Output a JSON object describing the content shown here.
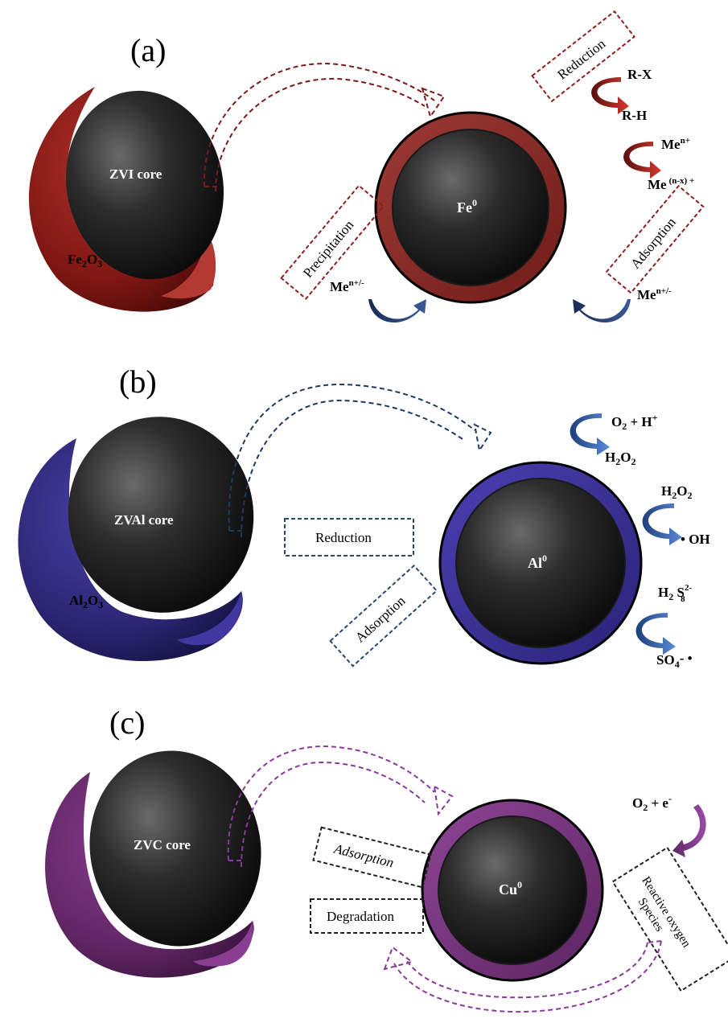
{
  "panels": {
    "a": {
      "label": "(a)",
      "core_label": "ZVI core",
      "shell_label_main": "Fe",
      "shell_label_sub1": "2",
      "shell_label_mid": "O",
      "shell_label_sub2": "3",
      "particle_label": "Fe",
      "particle_sup": "0",
      "box_reduction": "Reduction",
      "box_precipitation": "Precipitation",
      "box_adsorption": "Adsorption",
      "rx_in": "R-X",
      "rx_out": "R-H",
      "me_in": "Me",
      "me_in_sup": "n+",
      "me_out": "Me",
      "me_out_sup": "(n-x) +",
      "me_left": "Me",
      "me_left_sup": "n+/-",
      "me_right": "Me",
      "me_right_sup": "n+/-",
      "colors": {
        "shell": "#8c1a15",
        "arrow": "#7a1a1a",
        "box": "#8c2020"
      }
    },
    "b": {
      "label": "(b)",
      "core_label": "ZVAl core",
      "shell_label_main": "Al",
      "shell_label_sub1": "2",
      "shell_label_mid": "O",
      "shell_label_sub2": "3",
      "particle_label": "Al",
      "particle_sup": "0",
      "box_reduction": "Reduction",
      "box_adsorption": "Adsorption",
      "o2": "O",
      "o2_sub": "2",
      "o2_rest": " + H",
      "o2_sup": "+",
      "h2o2_a": "H",
      "h2o2_a_sub1": "2",
      "h2o2_a_mid": "O",
      "h2o2_a_sub2": "2",
      "h2o2_b": "H",
      "h2o2_b_sub1": "2",
      "h2o2_b_mid": "O",
      "h2o2_b_sub2": "2",
      "oh": "• OH",
      "h2s": "H",
      "h2s_sub": "2",
      "h2s_rest": " S",
      "h2s_sup": "2-",
      "h2s_sub2": "8",
      "so4": "SO",
      "so4_sub": "4",
      "so4_rest": "- •",
      "colors": {
        "shell": "#2f2a7a",
        "arrow": "#1f3a5f",
        "box": "#2b4a6b"
      }
    },
    "c": {
      "label": "(c)",
      "core_label": "ZVC core",
      "particle_label": "Cu",
      "particle_sup": "0",
      "box_adsorption": "Adsorption",
      "box_degradation": "Degradation",
      "box_ros_line1": "Reactive oxygen",
      "box_ros_line2": "Species",
      "o2": "O",
      "o2_sub": "2",
      "o2_rest": " + e",
      "o2_sup": "-",
      "colors": {
        "shell": "#6a2a6e",
        "arrow": "#8a3a9a",
        "box": "#222222"
      }
    }
  }
}
